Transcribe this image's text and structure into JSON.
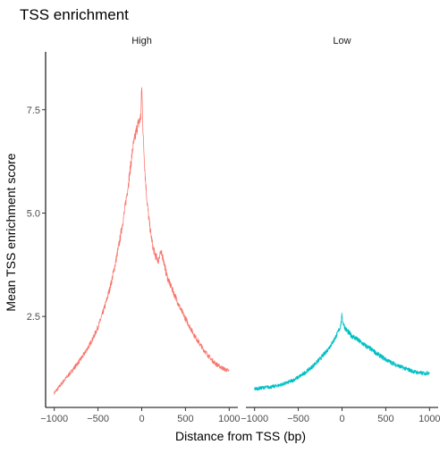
{
  "chart_data": {
    "type": "line",
    "title": "TSS enrichment",
    "xlabel": "Distance from TSS (bp)",
    "ylabel": "Mean TSS enrichment score",
    "xlim": [
      -1000,
      1000
    ],
    "ylim": [
      0.3,
      8.9
    ],
    "x_ticks": [
      -1000,
      -500,
      0,
      500,
      1000
    ],
    "x_tick_labels": [
      "−1000",
      "−500",
      "0",
      "500",
      "1000"
    ],
    "y_ticks": [
      2.5,
      5.0,
      7.5
    ],
    "y_tick_labels": [
      "2.5",
      "5.0",
      "7.5"
    ],
    "grid": false,
    "legend": "none",
    "panels": [
      {
        "label": "High",
        "color": "#F8766D",
        "x": [
          -1000,
          -950,
          -900,
          -850,
          -800,
          -750,
          -700,
          -650,
          -600,
          -550,
          -500,
          -450,
          -400,
          -350,
          -300,
          -250,
          -200,
          -150,
          -100,
          -75,
          -50,
          -30,
          -20,
          -10,
          0,
          10,
          20,
          40,
          60,
          80,
          100,
          130,
          160,
          190,
          210,
          240,
          260,
          280,
          300,
          350,
          400,
          450,
          500,
          550,
          600,
          650,
          700,
          750,
          800,
          850,
          900,
          950,
          1000
        ],
        "values": [
          0.65,
          0.78,
          0.92,
          1.05,
          1.18,
          1.32,
          1.46,
          1.62,
          1.8,
          2.0,
          2.25,
          2.55,
          2.9,
          3.3,
          3.8,
          4.35,
          5.0,
          5.75,
          6.6,
          6.85,
          7.1,
          7.2,
          7.25,
          7.35,
          8.1,
          7.3,
          6.7,
          5.9,
          5.3,
          4.9,
          4.55,
          4.15,
          3.95,
          3.85,
          4.05,
          3.95,
          3.75,
          3.55,
          3.4,
          3.15,
          2.9,
          2.65,
          2.45,
          2.25,
          2.05,
          1.88,
          1.72,
          1.58,
          1.45,
          1.35,
          1.28,
          1.22,
          1.18
        ]
      },
      {
        "label": "Low",
        "color": "#00BFC4",
        "x": [
          -1000,
          -950,
          -900,
          -850,
          -800,
          -750,
          -700,
          -650,
          -600,
          -550,
          -500,
          -450,
          -400,
          -350,
          -300,
          -250,
          -200,
          -150,
          -100,
          -75,
          -50,
          -30,
          -20,
          -10,
          0,
          10,
          20,
          40,
          60,
          80,
          100,
          150,
          200,
          250,
          300,
          350,
          400,
          450,
          500,
          550,
          600,
          650,
          700,
          750,
          800,
          850,
          900,
          950,
          1000
        ],
        "values": [
          0.75,
          0.76,
          0.78,
          0.79,
          0.8,
          0.82,
          0.85,
          0.88,
          0.92,
          0.97,
          1.03,
          1.1,
          1.18,
          1.27,
          1.37,
          1.48,
          1.6,
          1.74,
          1.9,
          2.0,
          2.1,
          2.2,
          2.25,
          2.35,
          2.55,
          2.35,
          2.3,
          2.2,
          2.15,
          2.1,
          2.05,
          1.98,
          1.9,
          1.82,
          1.75,
          1.68,
          1.6,
          1.53,
          1.46,
          1.4,
          1.35,
          1.3,
          1.26,
          1.22,
          1.18,
          1.15,
          1.13,
          1.12,
          1.15
        ]
      }
    ]
  }
}
